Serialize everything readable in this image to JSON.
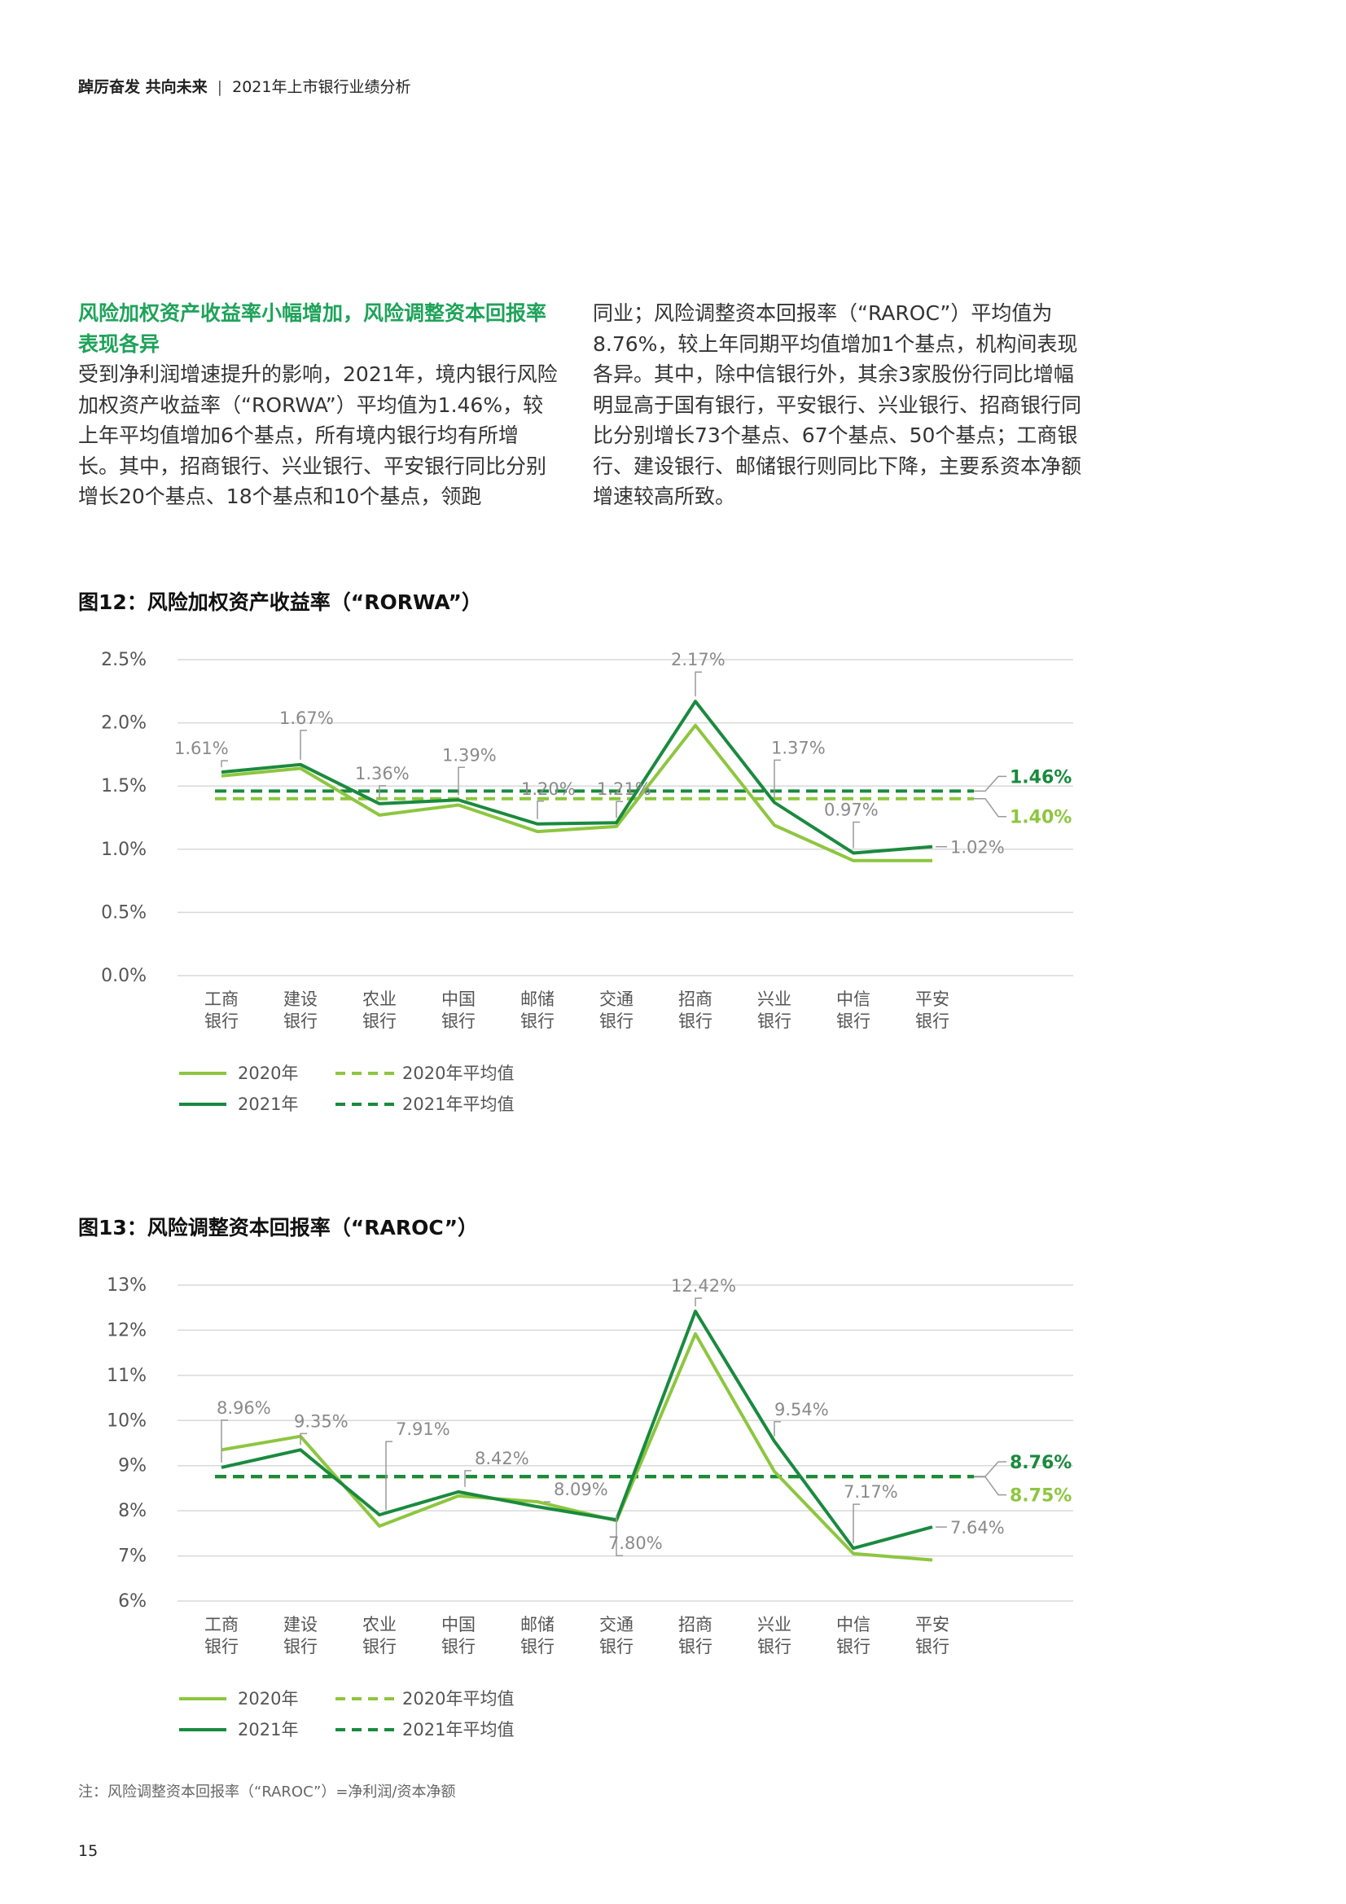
{
  "header": {
    "title_bold": "踔厉奋发 共向未来",
    "separator": "|",
    "subtitle": "2021年上市银行业绩分析"
  },
  "section": {
    "heading": "风险加权资产收益率小幅增加，风险调整资本回报率表现各异",
    "para_left": "受到净利润增速提升的影响，2021年，境内银行风险加权资产收益率（“RORWA”）平均值为1.46%，较上年平均值增加6个基点，所有境内银行均有所增长。其中，招商银行、兴业银行、平安银行同比分别增长20个基点、18个基点和10个基点，领跑",
    "para_right": "同业；风险调整资本回报率（“RAROC”）平均值为8.76%，较上年同期平均值增加1个基点，机构间表现各异。其中，除中信银行外，其余3家股份行同比增幅明显高于国有银行，平安银行、兴业银行、招商银行同比分别增长73个基点、67个基点、50个基点；工商银行、建设银行、邮储银行则同比下降，主要系资本净额增速较高所致。"
  },
  "colors": {
    "s2020": "#8dc63f",
    "s2021": "#1a8a3e",
    "grid": "#d9d9d9",
    "callout": "#9a9a9a",
    "text_axis": "#555555",
    "label_grey": "#8a8a8a"
  },
  "chart_data": [
    {
      "type": "line",
      "title": "图12：风险加权资产收益率（“RORWA”）",
      "categories": [
        [
          "工商",
          "银行"
        ],
        [
          "建设",
          "银行"
        ],
        [
          "农业",
          "银行"
        ],
        [
          "中国",
          "银行"
        ],
        [
          "邮储",
          "银行"
        ],
        [
          "交通",
          "银行"
        ],
        [
          "招商",
          "银行"
        ],
        [
          "兴业",
          "银行"
        ],
        [
          "中信",
          "银行"
        ],
        [
          "平安",
          "银行"
        ]
      ],
      "ylim": [
        0,
        2.5
      ],
      "yticks": [
        0,
        0.5,
        1.0,
        1.5,
        2.0,
        2.5
      ],
      "yticklabels": [
        "0.0%",
        "0.5%",
        "1.0%",
        "1.5%",
        "2.0%",
        "2.5%"
      ],
      "grid": true,
      "series": [
        {
          "name": "2020年",
          "values": [
            1.58,
            1.64,
            1.27,
            1.35,
            1.14,
            1.18,
            1.98,
            1.19,
            0.91,
            0.91
          ]
        },
        {
          "name": "2021年",
          "values": [
            1.61,
            1.67,
            1.36,
            1.39,
            1.2,
            1.21,
            2.17,
            1.37,
            0.97,
            1.02
          ]
        }
      ],
      "averages": [
        {
          "name": "2020年平均值",
          "value": 1.4,
          "label": "1.40%"
        },
        {
          "name": "2021年平均值",
          "value": 1.46,
          "label": "1.46%"
        }
      ],
      "data_labels": [
        "1.61%",
        "1.67%",
        "1.36%",
        "1.39%",
        "1.20%",
        "1.21%",
        "2.17%",
        "1.37%",
        "0.97%",
        "1.02%"
      ],
      "legend": [
        "2020年",
        "2021年",
        "2020年平均值",
        "2021年平均值"
      ]
    },
    {
      "type": "line",
      "title": "图13：风险调整资本回报率（“RAROC”）",
      "categories": [
        [
          "工商",
          "银行"
        ],
        [
          "建设",
          "银行"
        ],
        [
          "农业",
          "银行"
        ],
        [
          "中国",
          "银行"
        ],
        [
          "邮储",
          "银行"
        ],
        [
          "交通",
          "银行"
        ],
        [
          "招商",
          "银行"
        ],
        [
          "兴业",
          "银行"
        ],
        [
          "中信",
          "银行"
        ],
        [
          "平安",
          "银行"
        ]
      ],
      "ylim": [
        6,
        13
      ],
      "yticks": [
        6,
        7,
        8,
        9,
        10,
        11,
        12,
        13
      ],
      "yticklabels": [
        "6%",
        "7%",
        "8%",
        "9%",
        "10%",
        "11%",
        "12%",
        "13%"
      ],
      "grid": true,
      "series": [
        {
          "name": "2020年",
          "values": [
            9.35,
            9.65,
            7.66,
            8.33,
            8.2,
            7.78,
            11.92,
            8.87,
            7.05,
            6.91
          ]
        },
        {
          "name": "2021年",
          "values": [
            8.96,
            9.35,
            7.91,
            8.42,
            8.09,
            7.8,
            12.42,
            9.54,
            7.17,
            7.64
          ]
        }
      ],
      "averages": [
        {
          "name": "2020年平均值",
          "value": 8.75,
          "label": "8.75%"
        },
        {
          "name": "2021年平均值",
          "value": 8.76,
          "label": "8.76%"
        }
      ],
      "data_labels": [
        "8.96%",
        "9.35%",
        "7.91%",
        "8.42%",
        "8.09%",
        "7.80%",
        "12.42%",
        "9.54%",
        "7.17%",
        "7.64%"
      ],
      "legend": [
        "2020年",
        "2021年",
        "2020年平均值",
        "2021年平均值"
      ]
    }
  ],
  "note": "注：风险调整资本回报率（“RAROC”）=净利润/资本净额",
  "page_number": "15"
}
